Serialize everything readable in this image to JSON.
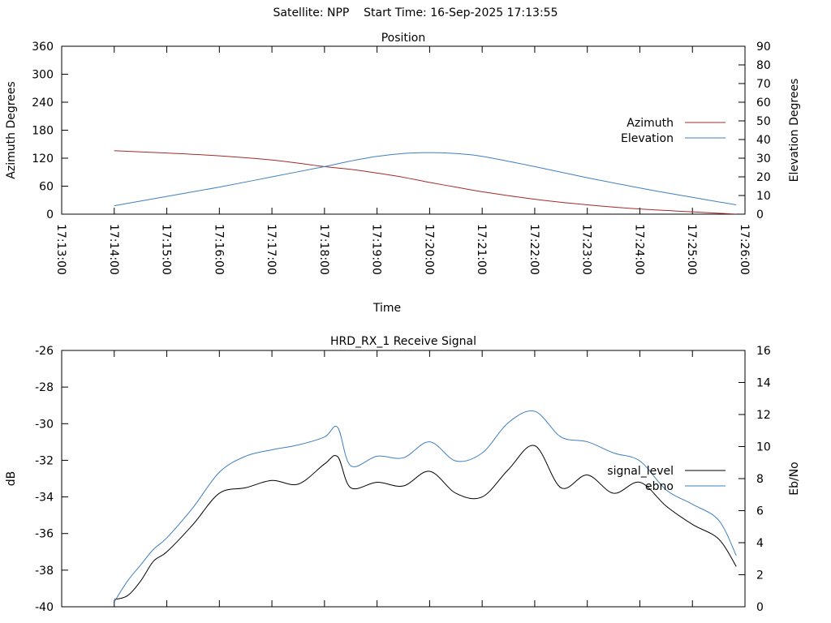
{
  "page": {
    "supertitle": "Satellite: NPP    Start Time: 16-Sep-2025 17:13:55"
  },
  "chart_data": [
    {
      "type": "line",
      "title": "Position",
      "xlabel": "Time",
      "ylabel": "Azimuth Degrees",
      "y2label": "Elevation Degrees",
      "xlim": [
        "17:13:00",
        "17:26:00"
      ],
      "x_tick_labels": [
        "17:13:00",
        "17:14:00",
        "17:15:00",
        "17:16:00",
        "17:17:00",
        "17:18:00",
        "17:19:00",
        "17:20:00",
        "17:21:00",
        "17:22:00",
        "17:23:00",
        "17:24:00",
        "17:25:00",
        "17:26:00"
      ],
      "ylim": [
        0,
        360
      ],
      "y_ticks": [
        0,
        60,
        120,
        180,
        240,
        300,
        360
      ],
      "y2lim": [
        0,
        90
      ],
      "y2_ticks": [
        0,
        10,
        20,
        30,
        40,
        50,
        60,
        70,
        80,
        90
      ],
      "legend_position": "right",
      "series": [
        {
          "name": "Azimuth",
          "axis": "left",
          "color": "#a52a2a",
          "x": [
            "17:14:00",
            "17:15:00",
            "17:16:00",
            "17:17:00",
            "17:18:00",
            "17:18:30",
            "17:19:00",
            "17:19:30",
            "17:20:00",
            "17:20:30",
            "17:21:00",
            "17:22:00",
            "17:23:00",
            "17:24:00",
            "17:25:00",
            "17:25:50"
          ],
          "y": [
            136,
            131,
            125,
            116,
            102,
            96,
            88,
            79,
            68,
            58,
            48,
            32,
            20,
            11,
            5,
            0
          ]
        },
        {
          "name": "Elevation",
          "axis": "right",
          "color": "#3f7fbf",
          "x": [
            "17:14:00",
            "17:15:00",
            "17:16:00",
            "17:17:00",
            "17:18:00",
            "17:18:30",
            "17:19:00",
            "17:19:30",
            "17:20:00",
            "17:20:30",
            "17:21:00",
            "17:22:00",
            "17:23:00",
            "17:24:00",
            "17:25:00",
            "17:25:50"
          ],
          "y": [
            4.5,
            9.5,
            14.5,
            20,
            25.5,
            28.5,
            31,
            32.5,
            33,
            32.5,
            31,
            25.5,
            19.5,
            14,
            9,
            5
          ]
        }
      ]
    },
    {
      "type": "line",
      "title": "HRD_RX_1 Receive Signal",
      "xlabel": "",
      "ylabel": "dB",
      "y2label": "Eb/No",
      "xlim": [
        "17:13:00",
        "17:26:00"
      ],
      "ylim": [
        -40,
        -26
      ],
      "y_ticks": [
        -40,
        -38,
        -36,
        -34,
        -32,
        -30,
        -28,
        -26
      ],
      "y2lim": [
        0,
        16
      ],
      "y2_ticks": [
        0,
        2,
        4,
        6,
        8,
        10,
        12,
        14,
        16
      ],
      "legend_position": "right",
      "series": [
        {
          "name": "signal_level",
          "axis": "left",
          "color": "#000000",
          "x": [
            "17:14:00",
            "17:14:15",
            "17:14:30",
            "17:14:45",
            "17:15:00",
            "17:15:30",
            "17:16:00",
            "17:16:30",
            "17:17:00",
            "17:17:30",
            "17:18:00",
            "17:18:15",
            "17:18:30",
            "17:19:00",
            "17:19:30",
            "17:20:00",
            "17:20:30",
            "17:21:00",
            "17:21:30",
            "17:22:00",
            "17:22:30",
            "17:23:00",
            "17:23:30",
            "17:24:00",
            "17:24:30",
            "17:25:00",
            "17:25:30",
            "17:25:50"
          ],
          "y": [
            -39.6,
            -39.4,
            -38.6,
            -37.5,
            -37,
            -35.5,
            -33.8,
            -33.5,
            -33.1,
            -33.3,
            -32.2,
            -31.8,
            -33.5,
            -33.2,
            -33.4,
            -32.6,
            -33.8,
            -34,
            -32.5,
            -31.2,
            -33.5,
            -32.8,
            -33.8,
            -33.2,
            -34.5,
            -35.5,
            -36.3,
            -37.8
          ]
        },
        {
          "name": "ebno",
          "axis": "right",
          "color": "#3f7fbf",
          "x": [
            "17:14:00",
            "17:14:15",
            "17:14:30",
            "17:14:45",
            "17:15:00",
            "17:15:30",
            "17:16:00",
            "17:16:30",
            "17:17:00",
            "17:17:30",
            "17:18:00",
            "17:18:15",
            "17:18:30",
            "17:19:00",
            "17:19:30",
            "17:20:00",
            "17:20:30",
            "17:21:00",
            "17:21:30",
            "17:22:00",
            "17:22:30",
            "17:23:00",
            "17:23:30",
            "17:24:00",
            "17:24:30",
            "17:25:00",
            "17:25:30",
            "17:25:50"
          ],
          "y": [
            0.3,
            1.6,
            2.6,
            3.6,
            4.3,
            6.2,
            8.4,
            9.4,
            9.8,
            10.1,
            10.6,
            11.2,
            8.8,
            9.4,
            9.3,
            10.3,
            9.1,
            9.6,
            11.5,
            12.2,
            10.6,
            10.3,
            9.6,
            9.1,
            7.3,
            6.4,
            5.4,
            3.2
          ]
        }
      ]
    }
  ]
}
